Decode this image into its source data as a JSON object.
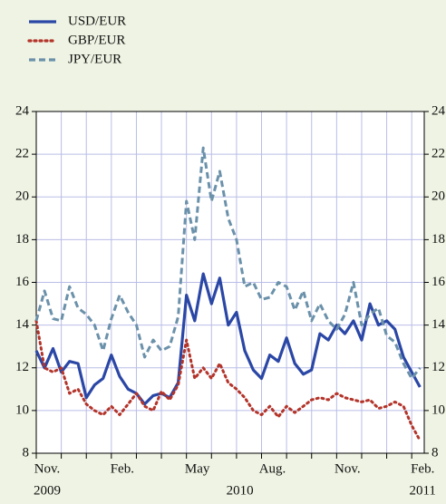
{
  "chart_data": {
    "type": "line",
    "x": [
      0,
      0.33,
      0.67,
      1,
      1.33,
      1.67,
      2,
      2.33,
      2.67,
      3,
      3.33,
      3.67,
      4,
      4.33,
      4.67,
      5,
      5.33,
      5.67,
      6,
      6.33,
      6.67,
      7,
      7.33,
      7.67,
      8,
      8.33,
      8.67,
      9,
      9.33,
      9.67,
      10,
      10.33,
      10.67,
      11,
      11.33,
      11.67,
      12,
      12.33,
      12.67,
      13,
      13.33,
      13.67,
      14,
      14.33,
      14.67,
      15,
      15.33
    ],
    "series": [
      {
        "name": "USD/EUR",
        "color": "#2b47a6",
        "style": "solid",
        "values": [
          12.8,
          12.0,
          12.9,
          11.8,
          12.3,
          12.2,
          10.6,
          11.2,
          11.5,
          12.6,
          11.6,
          11.0,
          10.8,
          10.3,
          10.7,
          10.8,
          10.6,
          11.3,
          15.4,
          14.2,
          16.4,
          15.0,
          16.2,
          14.0,
          14.6,
          12.8,
          11.9,
          11.5,
          12.6,
          12.3,
          13.4,
          12.2,
          11.7,
          11.9,
          13.6,
          13.3,
          14.0,
          13.6,
          14.2,
          13.3,
          15.0,
          14.0,
          14.2,
          13.8,
          12.5,
          11.8,
          11.1
        ]
      },
      {
        "name": "GBP/EUR",
        "color": "#b3342a",
        "style": "dotted",
        "values": [
          14.2,
          12.0,
          11.8,
          12.0,
          10.8,
          11.0,
          10.3,
          10.0,
          9.8,
          10.2,
          9.8,
          10.3,
          10.8,
          10.2,
          10.0,
          10.9,
          10.5,
          11.2,
          13.3,
          11.5,
          12.0,
          11.5,
          12.2,
          11.3,
          11.0,
          10.6,
          10.0,
          9.8,
          10.2,
          9.7,
          10.2,
          9.9,
          10.2,
          10.5,
          10.6,
          10.5,
          10.8,
          10.6,
          10.5,
          10.4,
          10.5,
          10.1,
          10.2,
          10.4,
          10.2,
          9.3,
          8.6
        ]
      },
      {
        "name": "JPY/EUR",
        "color": "#6b91aa",
        "style": "dashed",
        "values": [
          14.2,
          15.6,
          14.3,
          14.2,
          15.8,
          14.8,
          14.5,
          14.0,
          12.8,
          14.3,
          15.4,
          14.6,
          14.0,
          12.5,
          13.3,
          12.8,
          13.0,
          14.4,
          19.8,
          18.0,
          22.3,
          19.8,
          21.2,
          19.0,
          18.0,
          15.8,
          16.0,
          15.2,
          15.3,
          16.0,
          15.8,
          14.7,
          15.6,
          14.2,
          15.0,
          14.2,
          13.8,
          14.5,
          16.0,
          14.0,
          14.5,
          14.8,
          13.5,
          13.2,
          12.2,
          11.5,
          12.0
        ]
      }
    ],
    "xlim": [
      0,
      15.5
    ],
    "xticks": [
      {
        "value": 0,
        "label": "Nov."
      },
      {
        "value": 3,
        "label": "Feb."
      },
      {
        "value": 6,
        "label": "May"
      },
      {
        "value": 9,
        "label": "Aug."
      },
      {
        "value": 12,
        "label": "Nov."
      },
      {
        "value": 15,
        "label": "Feb."
      }
    ],
    "xyears": [
      {
        "value": 0,
        "label": "2009"
      },
      {
        "value": 7.7,
        "label": "2010"
      },
      {
        "value": 15,
        "label": "2011"
      }
    ],
    "xgrid": [
      0,
      1,
      2,
      3,
      4,
      5,
      6,
      7,
      8,
      9,
      10,
      11,
      12,
      13,
      14,
      15
    ],
    "ylim": [
      8,
      24
    ],
    "yticks": [
      8,
      10,
      12,
      14,
      16,
      18,
      20,
      22,
      24
    ],
    "y2lim": [
      8,
      24
    ],
    "y2ticks": [
      8,
      10,
      12,
      14,
      16,
      18,
      20,
      22,
      24
    ],
    "grid": true,
    "legend": "top-left"
  }
}
